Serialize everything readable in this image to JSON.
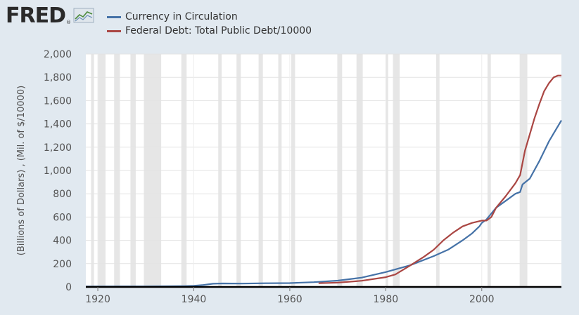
{
  "header": {
    "logo_text": "FRED",
    "logo_reg": "®"
  },
  "legend": {
    "items": [
      {
        "label": "Currency in Circulation",
        "color": "#4572a7"
      },
      {
        "label": "Federal Debt: Total Public Debt/10000",
        "color": "#aa4643"
      }
    ]
  },
  "chart_data": {
    "type": "line",
    "title": "",
    "xlabel": "",
    "ylabel": "(Billions of Dollars) , (Mil. of $/10000)",
    "xlim": [
      1917.5,
      2016.6
    ],
    "ylim": [
      0,
      2000
    ],
    "x_ticks": [
      1920,
      1940,
      1960,
      1980,
      2000
    ],
    "x_tick_labels": [
      "1920",
      "1940",
      "1960",
      "1980",
      "2000"
    ],
    "y_ticks": [
      0,
      200,
      400,
      600,
      800,
      1000,
      1200,
      1400,
      1600,
      1800,
      2000
    ],
    "y_tick_labels": [
      "0",
      "200",
      "400",
      "600",
      "800",
      "1,000",
      "1,200",
      "1,400",
      "1,600",
      "1,800",
      "2,000"
    ],
    "grid": true,
    "recession_color": "#e6e6e6",
    "recessions": [
      [
        1918.6,
        1919.2
      ],
      [
        1920.0,
        1921.6
      ],
      [
        1923.4,
        1924.6
      ],
      [
        1926.8,
        1927.9
      ],
      [
        1929.6,
        1933.2
      ],
      [
        1937.4,
        1938.5
      ],
      [
        1945.1,
        1945.8
      ],
      [
        1948.9,
        1949.8
      ],
      [
        1953.5,
        1954.4
      ],
      [
        1957.6,
        1958.3
      ],
      [
        1960.3,
        1961.1
      ],
      [
        1969.9,
        1970.9
      ],
      [
        1973.9,
        1975.2
      ],
      [
        1980.0,
        1980.5
      ],
      [
        1981.5,
        1982.9
      ],
      [
        1990.5,
        1991.2
      ],
      [
        2001.2,
        2001.9
      ],
      [
        2007.9,
        2009.5
      ]
    ],
    "series": [
      {
        "name": "Currency in Circulation",
        "color": "#4572a7",
        "x": [
          1917.5,
          1925,
          1930,
          1935,
          1938,
          1940,
          1942,
          1944,
          1946,
          1950,
          1955,
          1960,
          1965,
          1970,
          1975,
          1980,
          1985,
          1990,
          1993,
          1996,
          1998,
          1999.5,
          2000,
          2001,
          2003,
          2005,
          2007,
          2008,
          2008.5,
          2010,
          2012,
          2014,
          2015,
          2016.6
        ],
        "values": [
          4,
          5,
          5,
          6,
          7,
          10,
          17,
          28,
          30,
          29,
          32,
          33,
          41,
          54,
          80,
          128,
          185,
          265,
          320,
          400,
          460,
          520,
          550,
          580,
          680,
          740,
          800,
          815,
          880,
          930,
          1080,
          1250,
          1320,
          1430
        ]
      },
      {
        "name": "Federal Debt: Total Public Debt/10000",
        "color": "#aa4643",
        "x": [
          1966,
          1970,
          1975,
          1980,
          1982,
          1985,
          1988,
          1990,
          1992,
          1994,
          1996,
          1998,
          2000,
          2001,
          2002,
          2003,
          2005,
          2007,
          2008,
          2009,
          2011,
          2012,
          2013,
          2014,
          2015,
          2015.9,
          2016.6
        ],
        "values": [
          32,
          37,
          53,
          84,
          107,
          182,
          260,
          320,
          400,
          465,
          520,
          550,
          570,
          570,
          600,
          680,
          780,
          890,
          960,
          1170,
          1450,
          1570,
          1680,
          1750,
          1800,
          1815,
          1815
        ]
      }
    ]
  }
}
